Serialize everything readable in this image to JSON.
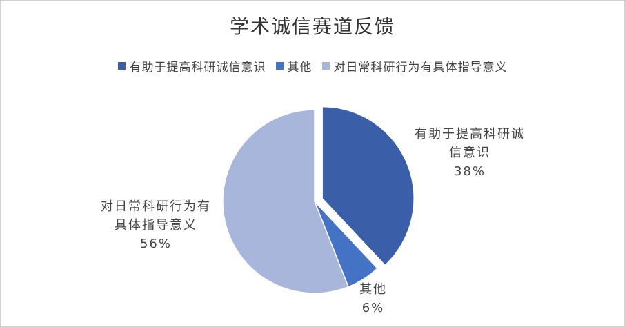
{
  "chart_data": {
    "type": "pie",
    "title": "学术诚信赛道反馈",
    "categories": [
      "有助于提高科研诚信意识",
      "其他",
      "对日常科研行为有具体指导意义"
    ],
    "values": [
      38,
      6,
      56
    ],
    "value_labels": [
      "38%",
      "6%",
      "56%"
    ],
    "colors": [
      "#3a5ea8",
      "#4472c4",
      "#a9b6dc"
    ],
    "legend": "top"
  }
}
